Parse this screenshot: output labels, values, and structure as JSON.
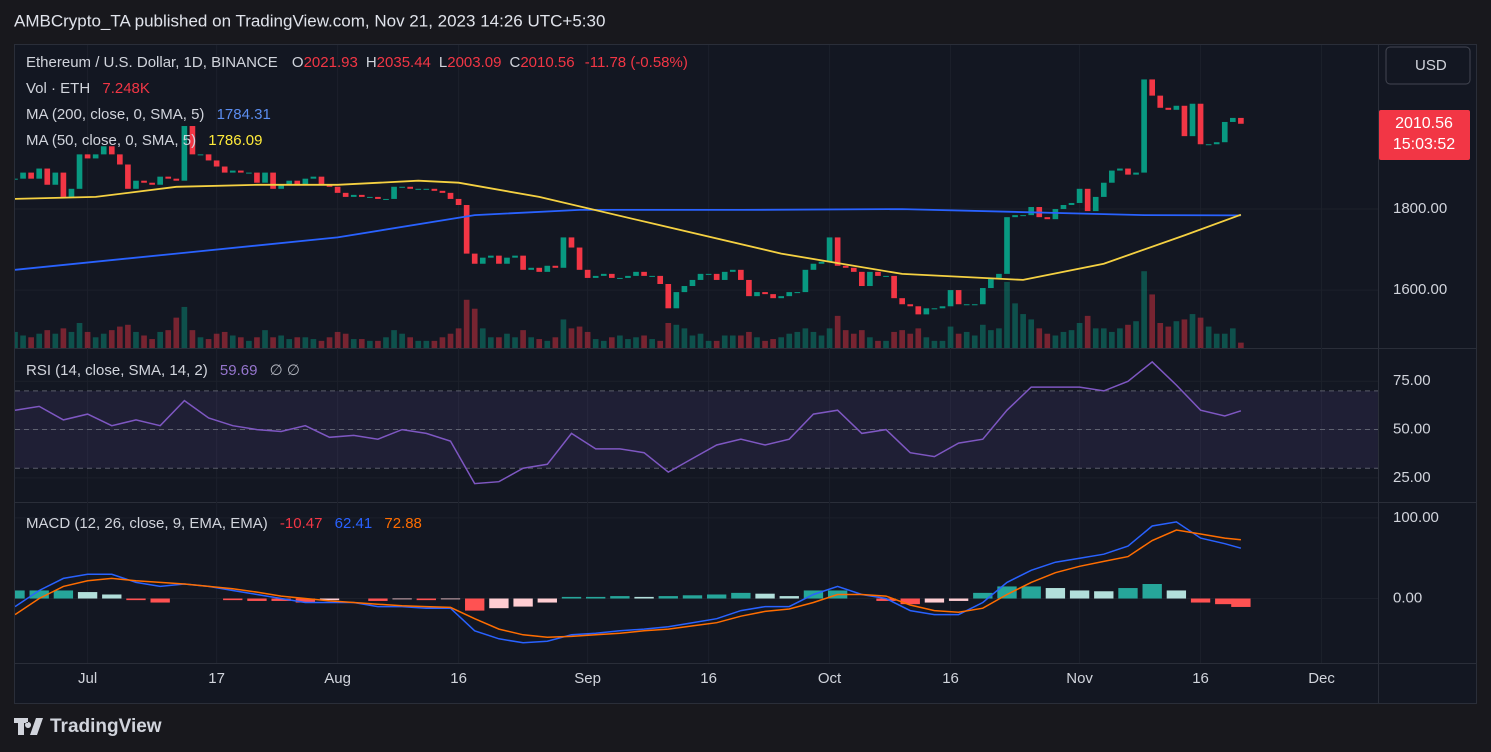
{
  "header": {
    "publisher": "AMBCrypto_TA published on TradingView.com, Nov 21, 2023 14:26 UTC+5:30"
  },
  "currency_button": "USD",
  "footer": {
    "logo": "TradingView"
  },
  "chart_data": [
    {
      "type": "candlestick",
      "title": "Ethereum / U.S. Dollar, 1D, BINANCE",
      "ohlc": [
        {
          "key": "O",
          "value": 2021.93
        },
        {
          "key": "H",
          "value": 2035.44
        },
        {
          "key": "L",
          "value": 2003.09
        },
        {
          "key": "C",
          "value": 2010.56
        }
      ],
      "change": "-11.78 (-0.58%)",
      "volume_label": "Vol · ETH",
      "volume_value": "7.248K",
      "countdown": "15:03:52",
      "up_color": "#089981",
      "down_color": "#f23645",
      "close": [
        1875,
        1890,
        1875,
        1900,
        1860,
        1890,
        1830,
        1850,
        1935,
        1925,
        1935,
        1955,
        1935,
        1910,
        1850,
        1870,
        1865,
        1860,
        1880,
        1875,
        1870,
        2005,
        1935,
        1935,
        1920,
        1905,
        1890,
        1895,
        1890,
        1890,
        1865,
        1890,
        1850,
        1860,
        1870,
        1860,
        1875,
        1880,
        1860,
        1855,
        1840,
        1830,
        1835,
        1830,
        1830,
        1825,
        1825,
        1855,
        1855,
        1850,
        1850,
        1850,
        1845,
        1840,
        1825,
        1810,
        1690,
        1665,
        1680,
        1685,
        1665,
        1680,
        1685,
        1650,
        1655,
        1645,
        1660,
        1655,
        1730,
        1705,
        1650,
        1630,
        1635,
        1640,
        1630,
        1630,
        1635,
        1645,
        1635,
        1635,
        1615,
        1555,
        1595,
        1610,
        1625,
        1640,
        1640,
        1625,
        1645,
        1650,
        1625,
        1585,
        1595,
        1590,
        1580,
        1585,
        1595,
        1595,
        1650,
        1665,
        1670,
        1730,
        1660,
        1655,
        1645,
        1610,
        1645,
        1635,
        1635,
        1580,
        1565,
        1560,
        1540,
        1555,
        1555,
        1560,
        1600,
        1565,
        1565,
        1565,
        1605,
        1630,
        1640,
        1780,
        1785,
        1785,
        1805,
        1780,
        1775,
        1800,
        1810,
        1815,
        1850,
        1795,
        1830,
        1865,
        1895,
        1900,
        1885,
        1890,
        2120,
        2080,
        2050,
        2045,
        2055,
        1980,
        2060,
        1960,
        1960,
        1965,
        2015,
        2025,
        2010.56
      ],
      "volume": [
        90,
        70,
        60,
        80,
        100,
        80,
        110,
        90,
        140,
        90,
        60,
        80,
        100,
        120,
        130,
        90,
        70,
        50,
        90,
        100,
        170,
        230,
        100,
        60,
        50,
        80,
        90,
        70,
        60,
        40,
        60,
        100,
        60,
        70,
        50,
        60,
        60,
        50,
        40,
        60,
        90,
        80,
        50,
        50,
        40,
        40,
        60,
        100,
        80,
        60,
        40,
        40,
        40,
        60,
        80,
        110,
        270,
        220,
        110,
        60,
        60,
        80,
        60,
        100,
        60,
        50,
        40,
        60,
        160,
        110,
        120,
        90,
        50,
        40,
        60,
        70,
        50,
        60,
        70,
        50,
        40,
        140,
        130,
        110,
        70,
        80,
        40,
        40,
        70,
        70,
        70,
        90,
        60,
        40,
        50,
        60,
        80,
        90,
        110,
        90,
        70,
        110,
        180,
        100,
        80,
        100,
        60,
        40,
        40,
        90,
        100,
        80,
        110,
        60,
        40,
        40,
        120,
        80,
        90,
        70,
        130,
        100,
        110,
        370,
        250,
        190,
        160,
        110,
        80,
        70,
        90,
        100,
        140,
        180,
        110,
        110,
        90,
        110,
        130,
        150,
        430,
        300,
        140,
        120,
        150,
        160,
        190,
        170,
        120,
        80,
        80,
        110,
        30
      ],
      "volume_ylim": [
        0,
        560
      ],
      "series": [
        {
          "name": "MA (200, close, 0, SMA, 5)",
          "color": "#2962ff",
          "x": [
            0,
            20,
            40,
            57,
            70,
            90,
            110,
            130,
            140,
            152
          ],
          "values": [
            1650,
            1690,
            1730,
            1785,
            1798,
            1798,
            1800,
            1790,
            1785,
            1784.31
          ]
        },
        {
          "name": "MA (50, close, 0, SMA, 5)",
          "color": "#f5d142",
          "x": [
            0,
            10,
            20,
            30,
            40,
            50,
            55,
            65,
            80,
            95,
            110,
            125,
            135,
            145,
            152
          ],
          "values": [
            1825,
            1830,
            1855,
            1860,
            1860,
            1870,
            1865,
            1830,
            1760,
            1690,
            1640,
            1625,
            1665,
            1735,
            1786.09
          ]
        }
      ],
      "xlim": [
        0,
        169
      ],
      "xticks": [
        {
          "value": 9,
          "label": "Jul"
        },
        {
          "value": 25,
          "label": "17"
        },
        {
          "value": 40,
          "label": "Aug"
        },
        {
          "value": 55,
          "label": "16"
        },
        {
          "value": 71,
          "label": "Sep"
        },
        {
          "value": 86,
          "label": "16"
        },
        {
          "value": 101,
          "label": "Oct"
        },
        {
          "value": 116,
          "label": "16"
        },
        {
          "value": 132,
          "label": "Nov"
        },
        {
          "value": 147,
          "label": "16"
        },
        {
          "value": 162,
          "label": "Dec"
        }
      ],
      "ylim": [
        1457,
        2205
      ],
      "yticks": [
        {
          "value": 1600,
          "label": "1600.00"
        },
        {
          "value": 1800,
          "label": "1800.00"
        }
      ],
      "grid": true
    },
    {
      "type": "line",
      "title": "RSI (14, close, SMA, 14, 2)",
      "extra": "∅ ∅",
      "series": [
        {
          "color": "#7e57c2",
          "x": [
            0,
            3,
            6,
            9,
            12,
            15,
            18,
            21,
            24,
            27,
            30,
            33,
            36,
            39,
            42,
            45,
            48,
            51,
            54,
            57,
            60,
            63,
            66,
            69,
            72,
            75,
            78,
            81,
            84,
            87,
            90,
            93,
            96,
            99,
            102,
            105,
            108,
            111,
            114,
            117,
            120,
            123,
            126,
            129,
            132,
            135,
            138,
            141,
            144,
            147,
            150,
            152
          ],
          "values": [
            60,
            62,
            55,
            58,
            52,
            55,
            52,
            65,
            56,
            52,
            50,
            49,
            52,
            46,
            47,
            45,
            50,
            48,
            44,
            22,
            23,
            30,
            32,
            48,
            40,
            40,
            38,
            28,
            35,
            42,
            45,
            42,
            45,
            58,
            60,
            48,
            50,
            38,
            36,
            43,
            45,
            60,
            72,
            72,
            72,
            70,
            75,
            85,
            73,
            60,
            57,
            59.69
          ]
        }
      ],
      "band_lines": [
        70,
        50,
        30
      ],
      "ylim": [
        12.5,
        91.7
      ],
      "yticks": [
        {
          "value": 25,
          "label": "25.00"
        },
        {
          "value": 50,
          "label": "50.00"
        },
        {
          "value": 75,
          "label": "75.00"
        }
      ]
    },
    {
      "type": "macd",
      "title": "MACD (12, 26, close, 9, EMA, EMA)",
      "x": [
        0,
        3,
        6,
        9,
        12,
        15,
        18,
        21,
        24,
        27,
        30,
        33,
        36,
        39,
        42,
        45,
        48,
        51,
        54,
        57,
        60,
        63,
        66,
        69,
        72,
        75,
        78,
        81,
        84,
        87,
        90,
        93,
        96,
        99,
        102,
        105,
        108,
        111,
        114,
        117,
        120,
        123,
        126,
        129,
        132,
        135,
        138,
        141,
        144,
        147,
        150,
        152
      ],
      "histogram": [
        10,
        10,
        10,
        8,
        5,
        -2,
        -5,
        0,
        0,
        -2,
        -3,
        -3,
        -5,
        -2,
        0,
        -3,
        -1,
        -2,
        -1,
        -15,
        -12,
        -10,
        -5,
        2,
        2,
        3,
        2,
        3,
        4,
        5,
        7,
        6,
        3,
        10,
        10,
        0,
        -3,
        -7,
        -5,
        -3,
        7,
        15,
        15,
        13,
        10,
        9,
        13,
        18,
        10,
        -5,
        -7,
        -10.47
      ],
      "histogram_colors": [
        "#26a69a",
        "#b2dfdb",
        "#ff5252",
        "#ffcdd2"
      ],
      "series": [
        {
          "color": "#2962ff",
          "values": [
            -10,
            10,
            25,
            30,
            30,
            20,
            15,
            18,
            15,
            10,
            5,
            0,
            -5,
            -5,
            -5,
            -10,
            -10,
            -12,
            -12,
            -40,
            -50,
            -55,
            -53,
            -45,
            -43,
            -40,
            -38,
            -35,
            -30,
            -25,
            -15,
            -10,
            -10,
            5,
            15,
            5,
            0,
            -15,
            -20,
            -20,
            -5,
            20,
            35,
            45,
            50,
            55,
            65,
            90,
            95,
            75,
            68,
            62.41
          ]
        },
        {
          "color": "#ff6d00",
          "values": [
            -20,
            0,
            15,
            22,
            25,
            22,
            20,
            18,
            15,
            12,
            8,
            3,
            0,
            -3,
            -5,
            -7,
            -9,
            -10,
            -11,
            -25,
            -38,
            -45,
            -48,
            -47,
            -45,
            -43,
            -40,
            -38,
            -34,
            -30,
            -22,
            -16,
            -13,
            -5,
            5,
            5,
            3,
            -8,
            -15,
            -17,
            -12,
            5,
            20,
            32,
            40,
            46,
            52,
            72,
            85,
            80,
            75,
            72.88
          ]
        }
      ],
      "ylim": [
        -80,
        118.5
      ],
      "yticks": [
        {
          "value": 0,
          "label": "0.00"
        },
        {
          "value": 100,
          "label": "100.00"
        }
      ]
    }
  ]
}
